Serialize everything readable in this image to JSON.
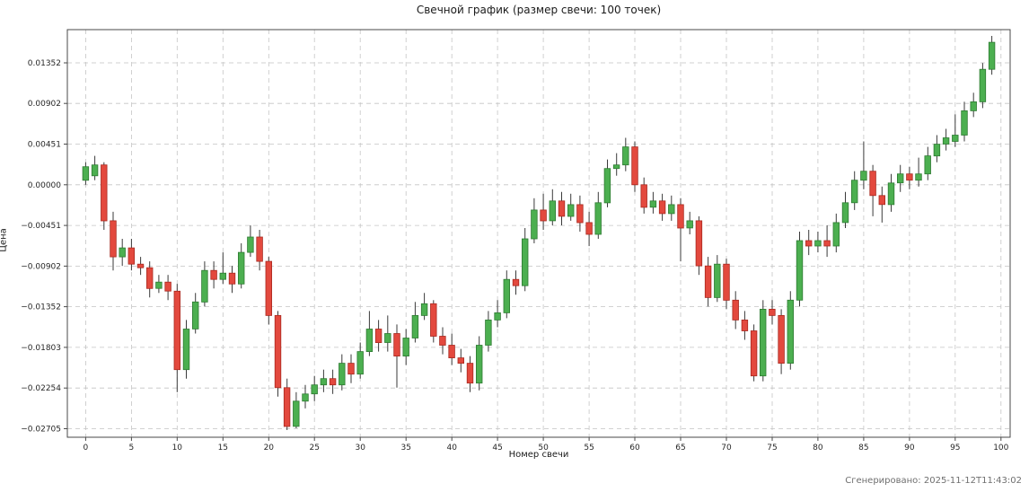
{
  "title": "Свечной график (размер свечи: 100 точек)",
  "footer": "Сгенерировано: 2025-11-12T11:43:02",
  "colors": {
    "up_fill": "#4caf50",
    "up_edge": "#2d7a31",
    "down_fill": "#e3493e",
    "down_edge": "#a8281f",
    "wick": "#3a3a3a",
    "grid": "#c4c4c4",
    "spine": "#4a4a4a",
    "tick_text": "#262626"
  },
  "chart_data": {
    "type": "candlestick",
    "title": "Свечной график (размер свечи: 100 точек)",
    "xlabel": "Номер свечи",
    "ylabel": "Цена",
    "grid": true,
    "legend": "none",
    "x_ticks": [
      0,
      5,
      10,
      15,
      20,
      25,
      30,
      35,
      40,
      45,
      50,
      55,
      60,
      65,
      70,
      75,
      80,
      85,
      90,
      95,
      100
    ],
    "y_ticks": [
      0.01352,
      0.00902,
      0.00451,
      0.0,
      -0.00451,
      -0.00902,
      -0.01352,
      -0.01803,
      -0.02254,
      -0.02705
    ],
    "xlim": [
      -2,
      101
    ],
    "ylim": [
      -0.028,
      0.0172
    ],
    "candles": [
      [
        0.0005,
        0.0025,
        0.0,
        0.002
      ],
      [
        0.001,
        0.0032,
        0.0005,
        0.0022
      ],
      [
        0.0022,
        0.0025,
        -0.005,
        -0.004
      ],
      [
        -0.004,
        -0.003,
        -0.0095,
        -0.008
      ],
      [
        -0.008,
        -0.006,
        -0.009,
        -0.007
      ],
      [
        -0.007,
        -0.006,
        -0.0095,
        -0.0088
      ],
      [
        -0.0088,
        -0.008,
        -0.01,
        -0.0092
      ],
      [
        -0.0092,
        -0.0085,
        -0.0125,
        -0.0115
      ],
      [
        -0.0115,
        -0.01,
        -0.012,
        -0.0108
      ],
      [
        -0.0108,
        -0.01,
        -0.0128,
        -0.0118
      ],
      [
        -0.0118,
        -0.011,
        -0.023,
        -0.0205
      ],
      [
        -0.0205,
        -0.015,
        -0.0215,
        -0.016
      ],
      [
        -0.016,
        -0.012,
        -0.0165,
        -0.013
      ],
      [
        -0.013,
        -0.0085,
        -0.0135,
        -0.0095
      ],
      [
        -0.0095,
        -0.0085,
        -0.0115,
        -0.0105
      ],
      [
        -0.0105,
        -0.0075,
        -0.011,
        -0.0098
      ],
      [
        -0.0098,
        -0.009,
        -0.012,
        -0.011
      ],
      [
        -0.011,
        -0.0065,
        -0.0115,
        -0.0075
      ],
      [
        -0.0075,
        -0.0045,
        -0.008,
        -0.0058
      ],
      [
        -0.0058,
        -0.005,
        -0.0095,
        -0.0085
      ],
      [
        -0.0085,
        -0.008,
        -0.0155,
        -0.0145
      ],
      [
        -0.0145,
        -0.014,
        -0.0235,
        -0.0225
      ],
      [
        -0.0225,
        -0.0215,
        -0.0272,
        -0.0268
      ],
      [
        -0.0268,
        -0.023,
        -0.027,
        -0.024
      ],
      [
        -0.024,
        -0.0222,
        -0.0248,
        -0.0232
      ],
      [
        -0.0232,
        -0.0212,
        -0.024,
        -0.0222
      ],
      [
        -0.0222,
        -0.0205,
        -0.023,
        -0.0215
      ],
      [
        -0.0215,
        -0.0205,
        -0.0232,
        -0.0222
      ],
      [
        -0.0222,
        -0.0188,
        -0.0228,
        -0.0198
      ],
      [
        -0.0198,
        -0.0188,
        -0.022,
        -0.021
      ],
      [
        -0.021,
        -0.0175,
        -0.0215,
        -0.0185
      ],
      [
        -0.0185,
        -0.014,
        -0.019,
        -0.016
      ],
      [
        -0.016,
        -0.015,
        -0.0185,
        -0.0175
      ],
      [
        -0.0175,
        -0.0145,
        -0.0185,
        -0.0165
      ],
      [
        -0.0165,
        -0.0155,
        -0.0225,
        -0.019
      ],
      [
        -0.019,
        -0.016,
        -0.02,
        -0.017
      ],
      [
        -0.017,
        -0.013,
        -0.0175,
        -0.0145
      ],
      [
        -0.0145,
        -0.012,
        -0.015,
        -0.0132
      ],
      [
        -0.0132,
        -0.0128,
        -0.0175,
        -0.0168
      ],
      [
        -0.0168,
        -0.0158,
        -0.0188,
        -0.0178
      ],
      [
        -0.0178,
        -0.0165,
        -0.02,
        -0.0192
      ],
      [
        -0.0192,
        -0.0182,
        -0.0208,
        -0.0198
      ],
      [
        -0.0198,
        -0.019,
        -0.023,
        -0.022
      ],
      [
        -0.022,
        -0.0168,
        -0.0228,
        -0.0178
      ],
      [
        -0.0178,
        -0.014,
        -0.0185,
        -0.015
      ],
      [
        -0.015,
        -0.0128,
        -0.0158,
        -0.0142
      ],
      [
        -0.0142,
        -0.0095,
        -0.0148,
        -0.0105
      ],
      [
        -0.0105,
        -0.0095,
        -0.0122,
        -0.0112
      ],
      [
        -0.0112,
        -0.0048,
        -0.0118,
        -0.006
      ],
      [
        -0.006,
        -0.0015,
        -0.0065,
        -0.0028
      ],
      [
        -0.0028,
        -0.001,
        -0.005,
        -0.004
      ],
      [
        -0.004,
        -0.0005,
        -0.0045,
        -0.0018
      ],
      [
        -0.0018,
        -0.0008,
        -0.0045,
        -0.0035
      ],
      [
        -0.0035,
        -0.001,
        -0.004,
        -0.0022
      ],
      [
        -0.0022,
        -0.0012,
        -0.0052,
        -0.0042
      ],
      [
        -0.0042,
        -0.003,
        -0.0068,
        -0.0055
      ],
      [
        -0.0055,
        -0.0008,
        -0.006,
        -0.002
      ],
      [
        -0.002,
        0.0028,
        -0.0025,
        0.0018
      ],
      [
        0.0018,
        0.0035,
        0.001,
        0.0022
      ],
      [
        0.0022,
        0.0052,
        0.0015,
        0.0042
      ],
      [
        0.0042,
        0.0048,
        -0.0008,
        0.0
      ],
      [
        0.0,
        0.0008,
        -0.0032,
        -0.0025
      ],
      [
        -0.0025,
        -0.0008,
        -0.0032,
        -0.0018
      ],
      [
        -0.0018,
        -0.001,
        -0.004,
        -0.0032
      ],
      [
        -0.0032,
        -0.0012,
        -0.004,
        -0.0022
      ],
      [
        -0.0022,
        -0.0015,
        -0.0085,
        -0.0048
      ],
      [
        -0.0048,
        -0.003,
        -0.0055,
        -0.004
      ],
      [
        -0.004,
        -0.0035,
        -0.01,
        -0.009
      ],
      [
        -0.009,
        -0.008,
        -0.0135,
        -0.0125
      ],
      [
        -0.0125,
        -0.0078,
        -0.013,
        -0.0088
      ],
      [
        -0.0088,
        -0.0082,
        -0.0138,
        -0.0128
      ],
      [
        -0.0128,
        -0.0118,
        -0.016,
        -0.015
      ],
      [
        -0.015,
        -0.014,
        -0.0172,
        -0.0162
      ],
      [
        -0.0162,
        -0.0155,
        -0.0218,
        -0.0212
      ],
      [
        -0.0212,
        -0.0128,
        -0.0218,
        -0.0138
      ],
      [
        -0.0138,
        -0.0128,
        -0.0155,
        -0.0145
      ],
      [
        -0.0145,
        -0.0138,
        -0.021,
        -0.0198
      ],
      [
        -0.0198,
        -0.0118,
        -0.0205,
        -0.0128
      ],
      [
        -0.0128,
        -0.0052,
        -0.0135,
        -0.0062
      ],
      [
        -0.0062,
        -0.005,
        -0.0078,
        -0.0068
      ],
      [
        -0.0068,
        -0.0052,
        -0.0075,
        -0.0062
      ],
      [
        -0.0062,
        -0.0045,
        -0.008,
        -0.0068
      ],
      [
        -0.0068,
        -0.0032,
        -0.0075,
        -0.0042
      ],
      [
        -0.0042,
        -0.0008,
        -0.0048,
        -0.002
      ],
      [
        -0.002,
        0.0015,
        -0.0028,
        0.0005
      ],
      [
        0.0005,
        0.0048,
        -0.0005,
        0.0015
      ],
      [
        0.0015,
        0.0022,
        -0.0035,
        -0.0012
      ],
      [
        -0.0012,
        -0.0002,
        -0.0042,
        -0.0022
      ],
      [
        -0.0022,
        0.0012,
        -0.003,
        0.0002
      ],
      [
        0.0002,
        0.0022,
        -0.0008,
        0.0012
      ],
      [
        0.0012,
        0.002,
        -0.0005,
        0.0005
      ],
      [
        0.0005,
        0.003,
        -0.0002,
        0.0012
      ],
      [
        0.0012,
        0.0042,
        0.0005,
        0.0032
      ],
      [
        0.0032,
        0.0055,
        0.0025,
        0.0045
      ],
      [
        0.0045,
        0.0062,
        0.0038,
        0.0052
      ],
      [
        0.0048,
        0.0078,
        0.0042,
        0.0055
      ],
      [
        0.0055,
        0.0092,
        0.0048,
        0.0082
      ],
      [
        0.0082,
        0.0102,
        0.0075,
        0.0092
      ],
      [
        0.0092,
        0.0135,
        0.0085,
        0.0128
      ],
      [
        0.0128,
        0.0165,
        0.0122,
        0.0158
      ]
    ]
  }
}
